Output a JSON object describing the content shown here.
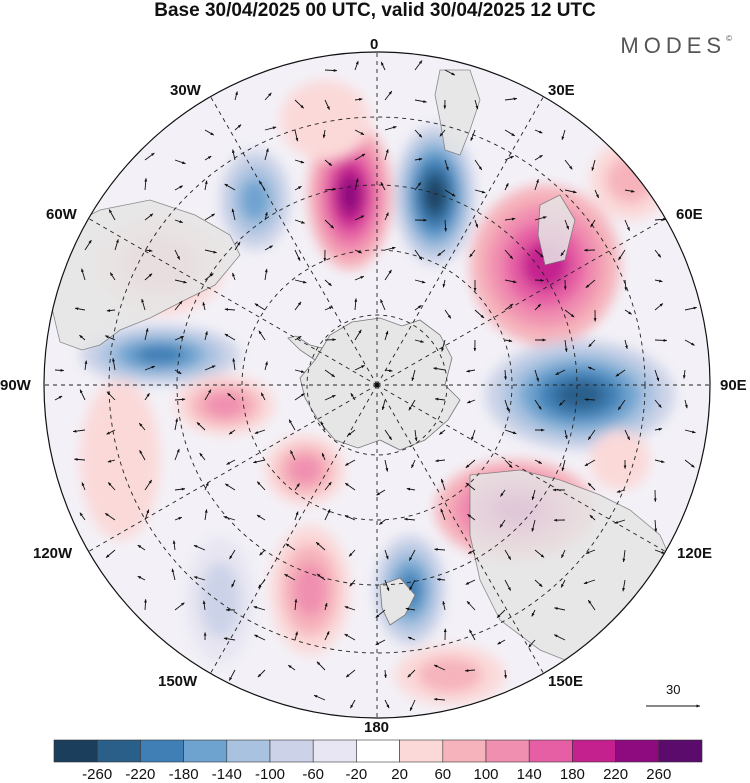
{
  "title": "Base 30/04/2025 00 UTC, valid 30/04/2025 12 UTC",
  "brand": "MODES",
  "brand_mark": "©",
  "map": {
    "projection": "south-polar-stereographic",
    "longitude_labels": {
      "top": "0",
      "top_right": "30E",
      "right_upper": "60E",
      "right": "90E",
      "right_lower": "120E",
      "bottom_right": "150E",
      "bottom": "180",
      "bottom_left": "150W",
      "left_lower": "120W",
      "left": "90W",
      "left_upper": "60W",
      "top_left": "30W"
    },
    "vector_reference": "30",
    "colors": {
      "land": "#e6e6e6",
      "grid": "#222222",
      "arrows": "#111111"
    }
  },
  "colorbar": {
    "colors": [
      "#1b3e5c",
      "#2a5f8a",
      "#3f7fb5",
      "#6ea3cf",
      "#a9c2e0",
      "#ccd3e8",
      "#e8e6f2",
      "#ffffff",
      "#fbd9d9",
      "#f6b3bb",
      "#f08fb0",
      "#e65fa4",
      "#c4218f",
      "#8e0a7f",
      "#5a0b6b"
    ],
    "labels": [
      "-260",
      "-220",
      "-180",
      "-140",
      "-100",
      "-60",
      "-20",
      "20",
      "60",
      "100",
      "140",
      "180",
      "220",
      "260"
    ]
  }
}
